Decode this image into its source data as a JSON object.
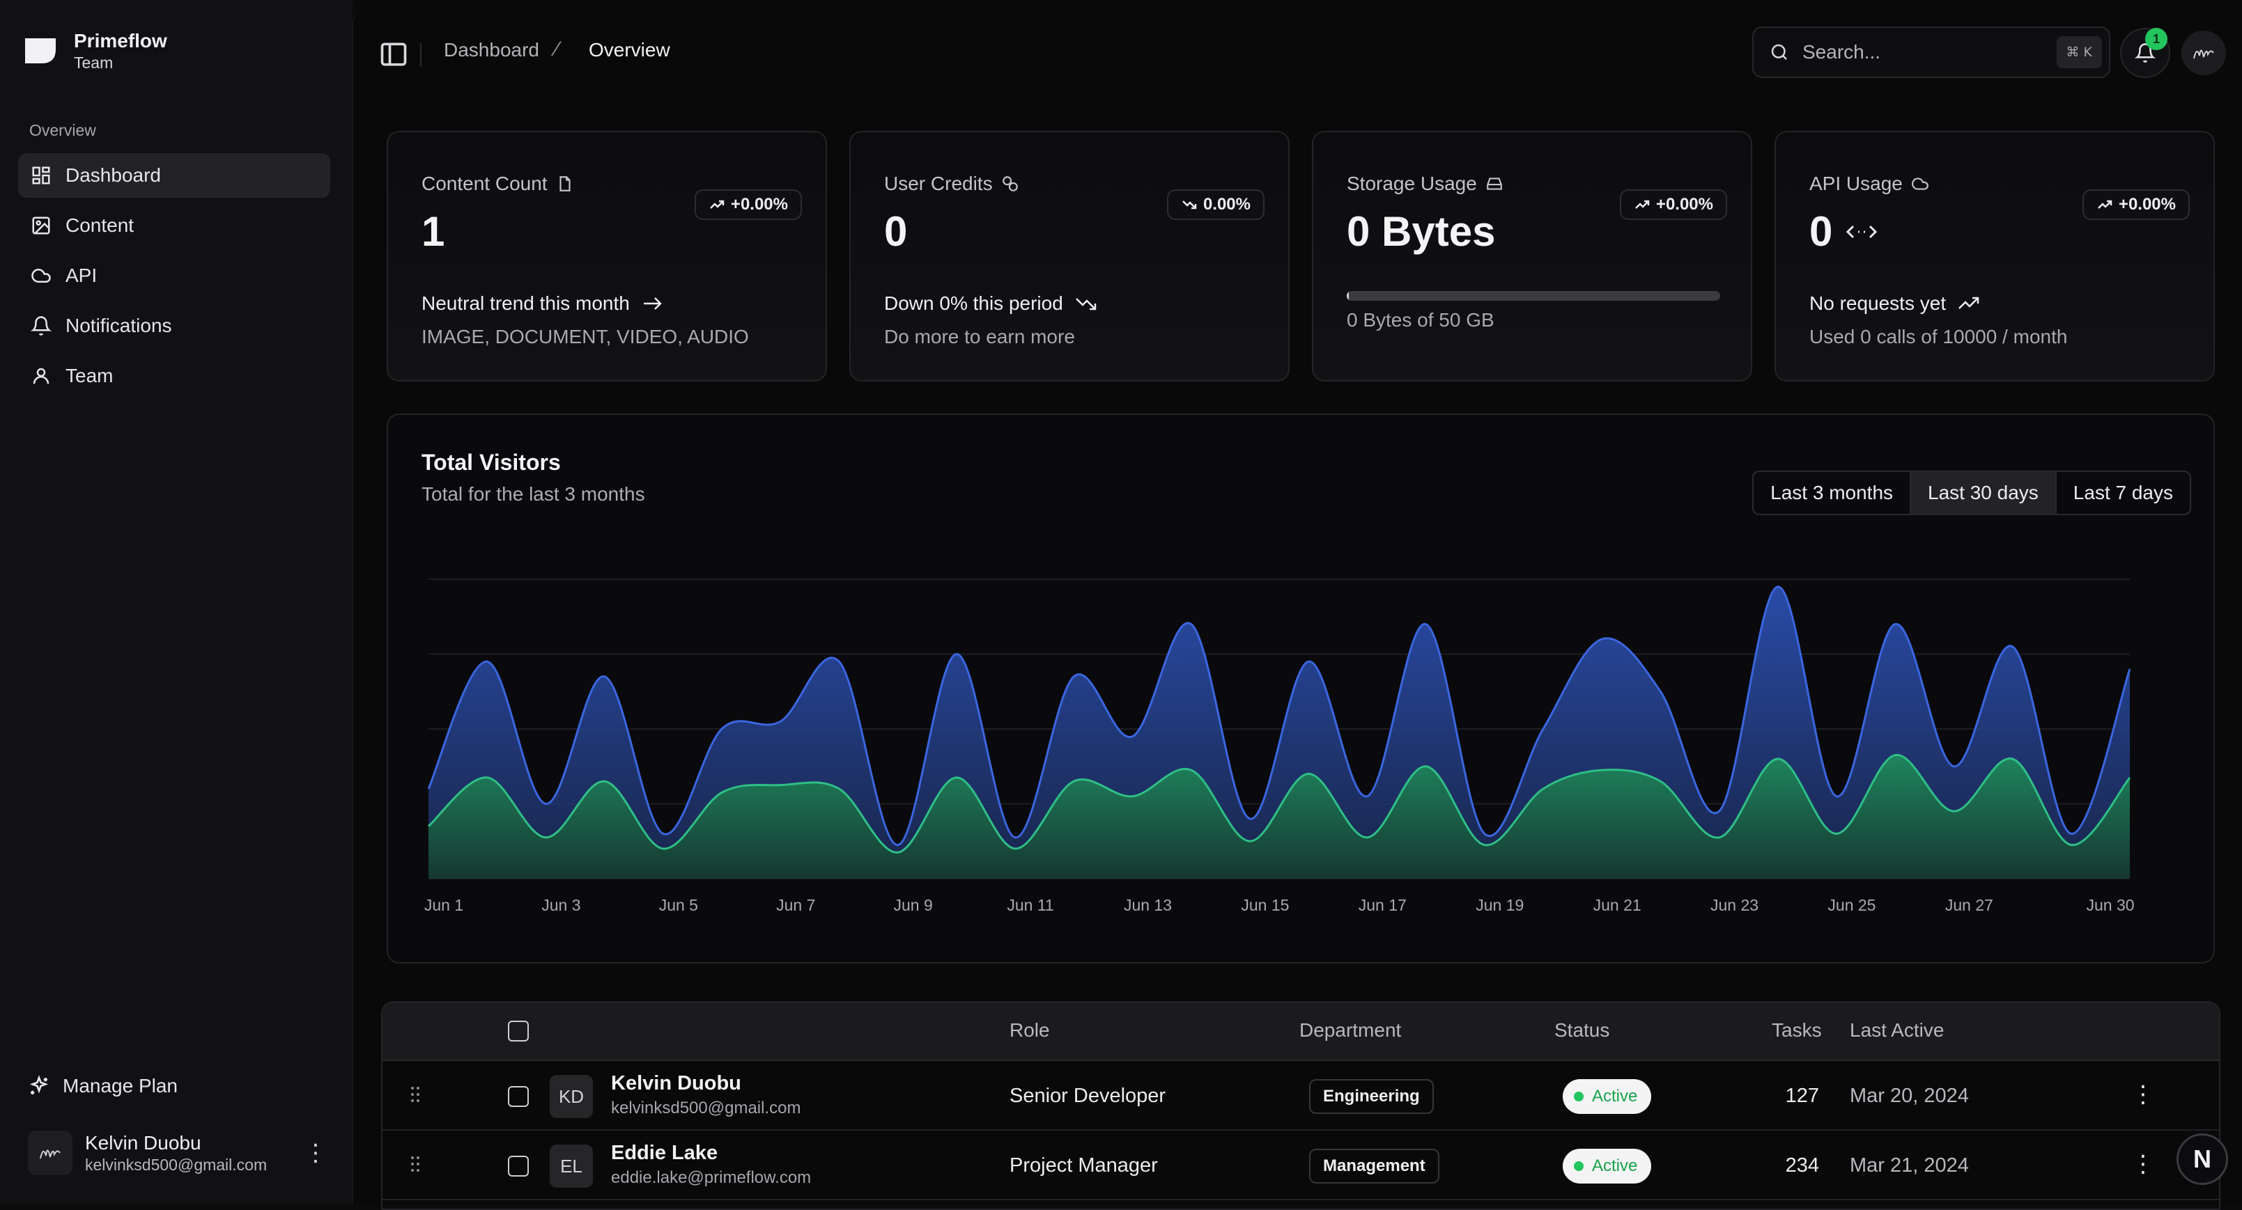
{
  "brand": {
    "name": "Primeflow",
    "sub": "Team"
  },
  "sidebar": {
    "section_label": "Overview",
    "items": [
      {
        "label": "Dashboard",
        "icon": "dashboard-icon",
        "active": true
      },
      {
        "label": "Content",
        "icon": "image-icon"
      },
      {
        "label": "API",
        "icon": "cloud-icon"
      },
      {
        "label": "Notifications",
        "icon": "bell-icon"
      },
      {
        "label": "Team",
        "icon": "user-icon"
      }
    ],
    "manage_plan": "Manage Plan",
    "user": {
      "name": "Kelvin Duobu",
      "email": "kelvinksd500@gmail.com"
    }
  },
  "header": {
    "breadcrumb": [
      "Dashboard",
      "Overview"
    ],
    "search_placeholder": "Search...",
    "shortcut": "⌘ K",
    "notification_count": "1"
  },
  "cards": [
    {
      "label": "Content Count",
      "value": "1",
      "badge": "+0.00%",
      "trend": "Neutral trend this month",
      "sub": "IMAGE, DOCUMENT, VIDEO, AUDIO"
    },
    {
      "label": "User Credits",
      "value": "0",
      "badge": "0.00%",
      "trend": "Down 0% this period",
      "sub": "Do more to earn more"
    },
    {
      "label": "Storage Usage",
      "value": "0 Bytes",
      "badge": "+0.00%",
      "sub": "0 Bytes of 50 GB",
      "fill": 0.005
    },
    {
      "label": "API Usage",
      "value": "0",
      "badge": "+0.00%",
      "trend": "No requests yet",
      "sub": "Used 0 calls of 10000 / month"
    }
  ],
  "chart": {
    "title": "Total Visitors",
    "subtitle": "Total for the last 3 months",
    "ranges": [
      "Last 3 months",
      "Last 30 days",
      "Last 7 days"
    ],
    "active_range": "Last 30 days",
    "colors": {
      "desktop": "#2b4ea8",
      "mobile": "#1f7a55"
    }
  },
  "chart_data": {
    "type": "area",
    "x": [
      "Jun 1",
      "Jun 2",
      "Jun 3",
      "Jun 4",
      "Jun 5",
      "Jun 6",
      "Jun 7",
      "Jun 8",
      "Jun 9",
      "Jun 10",
      "Jun 11",
      "Jun 12",
      "Jun 13",
      "Jun 14",
      "Jun 15",
      "Jun 16",
      "Jun 17",
      "Jun 18",
      "Jun 19",
      "Jun 20",
      "Jun 21",
      "Jun 22",
      "Jun 23",
      "Jun 24",
      "Jun 25",
      "Jun 26",
      "Jun 27",
      "Jun 28",
      "Jun 29",
      "Jun 30"
    ],
    "tick_labels": [
      "Jun 1",
      "Jun 3",
      "Jun 5",
      "Jun 7",
      "Jun 9",
      "Jun 11",
      "Jun 13",
      "Jun 15",
      "Jun 17",
      "Jun 19",
      "Jun 21",
      "Jun 23",
      "Jun 25",
      "Jun 27",
      "Jun 30"
    ],
    "series": [
      {
        "values": [
          120,
          290,
          100,
          270,
          60,
          200,
          210,
          290,
          45,
          300,
          55,
          270,
          190,
          340,
          80,
          290,
          110,
          340,
          60,
          200,
          320,
          250,
          90,
          390,
          110,
          340,
          150,
          310,
          60,
          280
        ]
      },
      {
        "values": [
          70,
          135,
          55,
          130,
          40,
          115,
          125,
          120,
          35,
          135,
          40,
          130,
          110,
          145,
          50,
          140,
          55,
          150,
          45,
          120,
          145,
          130,
          55,
          160,
          60,
          165,
          90,
          160,
          45,
          135
        ]
      }
    ],
    "ylim": [
      0,
      400
    ],
    "grid": true
  },
  "table": {
    "headers": [
      "Role",
      "Department",
      "Status",
      "Tasks",
      "Last Active"
    ],
    "rows": [
      {
        "initials": "KD",
        "name": "Kelvin Duobu",
        "email": "kelvinksd500@gmail.com",
        "role": "Senior Developer",
        "department": "Engineering",
        "status": "Active",
        "tasks": "127",
        "last_active": "Mar 20, 2024"
      },
      {
        "initials": "EL",
        "name": "Eddie Lake",
        "email": "eddie.lake@primeflow.com",
        "role": "Project Manager",
        "department": "Management",
        "status": "Active",
        "tasks": "234",
        "last_active": "Mar 21, 2024"
      }
    ]
  },
  "floating_button": "N"
}
